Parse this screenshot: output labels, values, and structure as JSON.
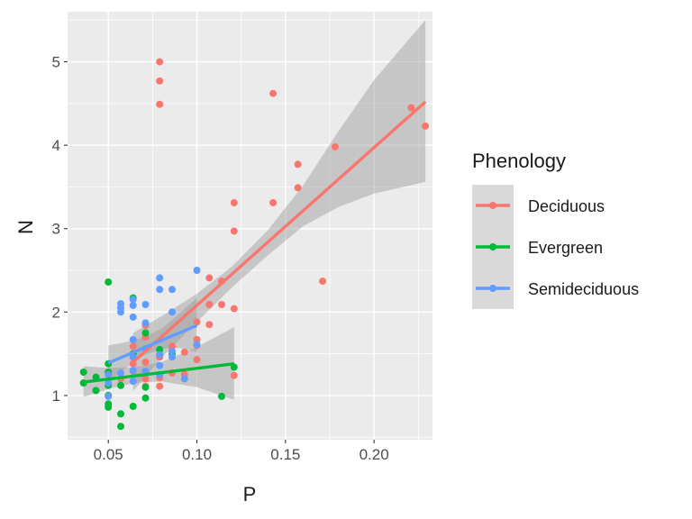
{
  "chart_data": {
    "type": "scatter",
    "title": "",
    "xlabel": "P",
    "ylabel": "N",
    "xlim": [
      0.027,
      0.233
    ],
    "ylim": [
      0.47,
      5.6
    ],
    "xticks": [
      0.05,
      0.1,
      0.15,
      0.2
    ],
    "xtick_labels": [
      "0.05",
      "0.10",
      "0.15",
      "0.20"
    ],
    "yticks": [
      1,
      2,
      3,
      4,
      5
    ],
    "ytick_labels": [
      "1",
      "2",
      "3",
      "4",
      "5"
    ],
    "grid": true,
    "legend": {
      "title": "Phenology",
      "position": "right"
    },
    "series": [
      {
        "name": "Deciduous",
        "color": "#F8766D",
        "points": [
          [
            0.079,
            5.0
          ],
          [
            0.079,
            4.77
          ],
          [
            0.079,
            4.49
          ],
          [
            0.143,
            4.62
          ],
          [
            0.178,
            3.98
          ],
          [
            0.157,
            3.77
          ],
          [
            0.157,
            3.49
          ],
          [
            0.143,
            3.31
          ],
          [
            0.121,
            3.31
          ],
          [
            0.121,
            2.97
          ],
          [
            0.221,
            4.45
          ],
          [
            0.229,
            4.23
          ],
          [
            0.171,
            2.37
          ],
          [
            0.107,
            2.41
          ],
          [
            0.114,
            2.37
          ],
          [
            0.121,
            2.04
          ],
          [
            0.114,
            2.09
          ],
          [
            0.107,
            2.09
          ],
          [
            0.107,
            1.85
          ],
          [
            0.1,
            1.88
          ],
          [
            0.1,
            1.67
          ],
          [
            0.1,
            1.6
          ],
          [
            0.093,
            1.52
          ],
          [
            0.1,
            1.43
          ],
          [
            0.093,
            1.25
          ],
          [
            0.086,
            1.27
          ],
          [
            0.086,
            1.59
          ],
          [
            0.079,
            1.46
          ],
          [
            0.079,
            1.21
          ],
          [
            0.079,
            1.11
          ],
          [
            0.071,
            1.84
          ],
          [
            0.071,
            1.7
          ],
          [
            0.071,
            1.4
          ],
          [
            0.071,
            1.2
          ],
          [
            0.071,
            1.11
          ],
          [
            0.064,
            1.38
          ],
          [
            0.064,
            1.29
          ],
          [
            0.121,
            1.24
          ],
          [
            0.057,
            1.2
          ],
          [
            0.064,
            1.59
          ]
        ],
        "trend": {
          "x": [
            0.064,
            0.229
          ],
          "y": [
            1.4,
            4.52
          ]
        },
        "band": {
          "x": [
            0.064,
            0.08,
            0.1,
            0.12,
            0.14,
            0.16,
            0.18,
            0.2,
            0.229
          ],
          "lower": [
            1.05,
            1.45,
            1.88,
            2.3,
            2.68,
            3.03,
            3.26,
            3.42,
            3.56
          ],
          "upper": [
            1.75,
            1.95,
            2.22,
            2.55,
            2.98,
            3.52,
            4.17,
            4.78,
            5.5
          ]
        }
      },
      {
        "name": "Evergreen",
        "color": "#00BA38",
        "points": [
          [
            0.036,
            1.28
          ],
          [
            0.036,
            1.15
          ],
          [
            0.043,
            1.22
          ],
          [
            0.043,
            1.06
          ],
          [
            0.05,
            2.36
          ],
          [
            0.05,
            1.38
          ],
          [
            0.05,
            1.28
          ],
          [
            0.05,
            1.12
          ],
          [
            0.05,
            1.0
          ],
          [
            0.05,
            0.9
          ],
          [
            0.05,
            0.86
          ],
          [
            0.057,
            1.12
          ],
          [
            0.057,
            0.78
          ],
          [
            0.057,
            0.63
          ],
          [
            0.064,
            2.17
          ],
          [
            0.064,
            1.5
          ],
          [
            0.064,
            0.87
          ],
          [
            0.071,
            1.75
          ],
          [
            0.071,
            1.1
          ],
          [
            0.071,
            0.97
          ],
          [
            0.079,
            1.55
          ],
          [
            0.086,
            1.5
          ],
          [
            0.114,
            0.99
          ],
          [
            0.121,
            1.34
          ]
        ],
        "trend": {
          "x": [
            0.036,
            0.121
          ],
          "y": [
            1.16,
            1.38
          ]
        },
        "band": {
          "x": [
            0.036,
            0.05,
            0.065,
            0.08,
            0.1,
            0.121
          ],
          "lower": [
            0.98,
            1.08,
            1.15,
            1.17,
            1.1,
            0.95
          ],
          "upper": [
            1.35,
            1.33,
            1.34,
            1.4,
            1.58,
            1.82
          ]
        }
      },
      {
        "name": "Semideciduous",
        "color": "#619CFF",
        "points": [
          [
            0.05,
            0.99
          ],
          [
            0.05,
            1.15
          ],
          [
            0.05,
            1.25
          ],
          [
            0.057,
            2.1
          ],
          [
            0.057,
            2.05
          ],
          [
            0.057,
            2.0
          ],
          [
            0.057,
            1.27
          ],
          [
            0.064,
            2.15
          ],
          [
            0.064,
            2.08
          ],
          [
            0.064,
            1.94
          ],
          [
            0.064,
            1.67
          ],
          [
            0.064,
            1.46
          ],
          [
            0.064,
            1.3
          ],
          [
            0.064,
            1.17
          ],
          [
            0.071,
            2.09
          ],
          [
            0.071,
            1.87
          ],
          [
            0.071,
            1.56
          ],
          [
            0.071,
            1.29
          ],
          [
            0.079,
            2.41
          ],
          [
            0.079,
            2.27
          ],
          [
            0.079,
            1.49
          ],
          [
            0.079,
            1.36
          ],
          [
            0.079,
            1.25
          ],
          [
            0.086,
            2.27
          ],
          [
            0.086,
            2.0
          ],
          [
            0.086,
            1.53
          ],
          [
            0.086,
            1.46
          ],
          [
            0.093,
            1.2
          ],
          [
            0.1,
            2.5
          ],
          [
            0.1,
            1.61
          ]
        ],
        "trend": {
          "x": [
            0.05,
            0.1
          ],
          "y": [
            1.39,
            1.84
          ]
        },
        "band": {
          "x": [
            0.05,
            0.06,
            0.07,
            0.08,
            0.09,
            0.1
          ],
          "lower": [
            1.16,
            1.33,
            1.48,
            1.56,
            1.57,
            1.52
          ],
          "upper": [
            1.6,
            1.64,
            1.7,
            1.8,
            1.98,
            2.17
          ]
        }
      }
    ]
  }
}
